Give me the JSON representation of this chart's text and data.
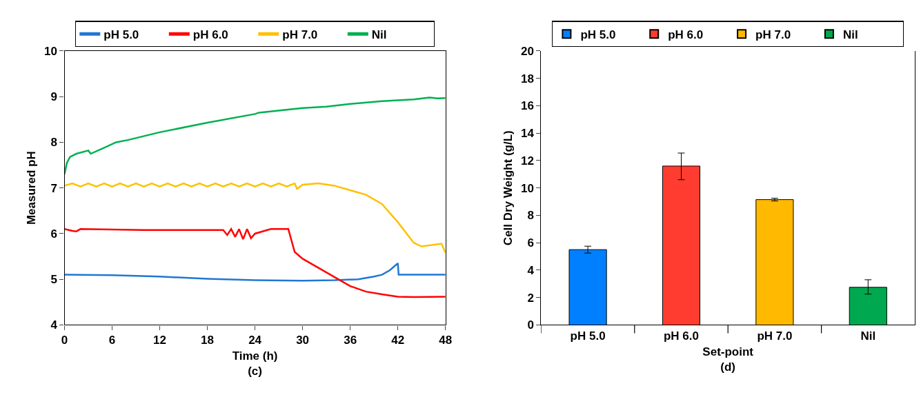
{
  "chart_data": [
    {
      "type": "line",
      "xlabel": "Time (h)",
      "ylabel": "Measured pH",
      "annotations": [
        "(c)"
      ],
      "xlim": [
        0,
        48
      ],
      "xticks": [
        0,
        6,
        12,
        18,
        24,
        30,
        36,
        42,
        48
      ],
      "ylim": [
        4,
        10
      ],
      "yticks": [
        4,
        5,
        6,
        7,
        8,
        9,
        10
      ],
      "legend": "top",
      "marker": "none",
      "line_style": "solid",
      "series": [
        {
          "name": "pH 5.0",
          "color": "#1f77d4",
          "x": [
            0,
            6,
            12,
            18,
            24,
            30,
            34,
            37,
            39,
            40,
            41,
            42,
            42.1,
            48
          ],
          "values": [
            5.1,
            5.09,
            5.06,
            5.01,
            4.98,
            4.97,
            4.98,
            5.0,
            5.06,
            5.1,
            5.2,
            5.35,
            5.1,
            5.1
          ]
        },
        {
          "name": "pH 6.0",
          "color": "#ff0000",
          "x": [
            0,
            1,
            1.5,
            2,
            10,
            20,
            20.5,
            21,
            21.5,
            22,
            22.5,
            23,
            23.5,
            24,
            26,
            28.2,
            28.6,
            29,
            30,
            32,
            34,
            36,
            38,
            40,
            42,
            44,
            48
          ],
          "values": [
            6.1,
            6.06,
            6.05,
            6.1,
            6.08,
            6.08,
            5.97,
            6.1,
            5.93,
            6.1,
            5.88,
            6.1,
            5.9,
            6.0,
            6.1,
            6.1,
            5.85,
            5.6,
            5.45,
            5.25,
            5.05,
            4.85,
            4.73,
            4.67,
            4.62,
            4.61,
            4.62
          ]
        },
        {
          "name": "pH 7.0",
          "color": "#ffc000",
          "x": [
            0,
            1,
            2,
            3,
            4,
            5,
            6,
            7,
            8,
            9,
            10,
            11,
            12,
            13,
            14,
            15,
            16,
            17,
            18,
            19,
            20,
            21,
            22,
            23,
            24,
            25,
            26,
            27,
            28,
            29,
            29.3,
            30,
            32,
            34,
            36,
            38,
            40,
            42,
            44,
            45,
            47.5,
            48
          ],
          "values": [
            7.05,
            7.1,
            7.03,
            7.1,
            7.03,
            7.1,
            7.03,
            7.1,
            7.03,
            7.1,
            7.03,
            7.1,
            7.03,
            7.1,
            7.03,
            7.1,
            7.03,
            7.1,
            7.03,
            7.1,
            7.03,
            7.1,
            7.03,
            7.1,
            7.03,
            7.1,
            7.03,
            7.1,
            7.03,
            7.1,
            6.98,
            7.07,
            7.1,
            7.05,
            6.95,
            6.85,
            6.65,
            6.25,
            5.8,
            5.72,
            5.78,
            5.58
          ]
        },
        {
          "name": "Nil",
          "color": "#00b050",
          "x": [
            0,
            0.3,
            0.7,
            1.5,
            3,
            3.3,
            5,
            6.5,
            8,
            12,
            18,
            24,
            24.5,
            30,
            33,
            36,
            40,
            44,
            46,
            47,
            48
          ],
          "values": [
            7.3,
            7.55,
            7.68,
            7.75,
            7.82,
            7.75,
            7.88,
            8.0,
            8.05,
            8.22,
            8.43,
            8.62,
            8.65,
            8.75,
            8.78,
            8.84,
            8.9,
            8.94,
            8.98,
            8.96,
            8.97
          ]
        }
      ]
    },
    {
      "type": "bar",
      "xlabel": "Set-point",
      "ylabel": "Cell Dry Weight (g/L)",
      "annotations": [
        "(d)"
      ],
      "categories": [
        "pH 5.0",
        "pH 6.0",
        "pH 7.0",
        "Nil"
      ],
      "ylim": [
        0,
        20
      ],
      "yticks": [
        0,
        2,
        4,
        6,
        8,
        10,
        12,
        14,
        16,
        18,
        20
      ],
      "legend": "top",
      "series": [
        {
          "name": "pH 5.0",
          "color": "#0080ff",
          "values": [
            5.5,
            null,
            null,
            null
          ],
          "errors": [
            0.25,
            null,
            null,
            null
          ]
        },
        {
          "name": "pH 6.0",
          "color": "#ff3c2f",
          "values": [
            null,
            11.6,
            null,
            null
          ],
          "errors": [
            null,
            [
              10.6,
              12.55
            ],
            null,
            null
          ]
        },
        {
          "name": "pH 7.0",
          "color": "#ffb900",
          "values": [
            null,
            null,
            9.15,
            null
          ],
          "errors": [
            null,
            null,
            0.1,
            null
          ]
        },
        {
          "name": "Nil",
          "color": "#00a84f",
          "values": [
            null,
            null,
            null,
            2.75
          ],
          "errors": [
            null,
            null,
            null,
            [
              2.25,
              3.3
            ]
          ]
        }
      ]
    }
  ]
}
